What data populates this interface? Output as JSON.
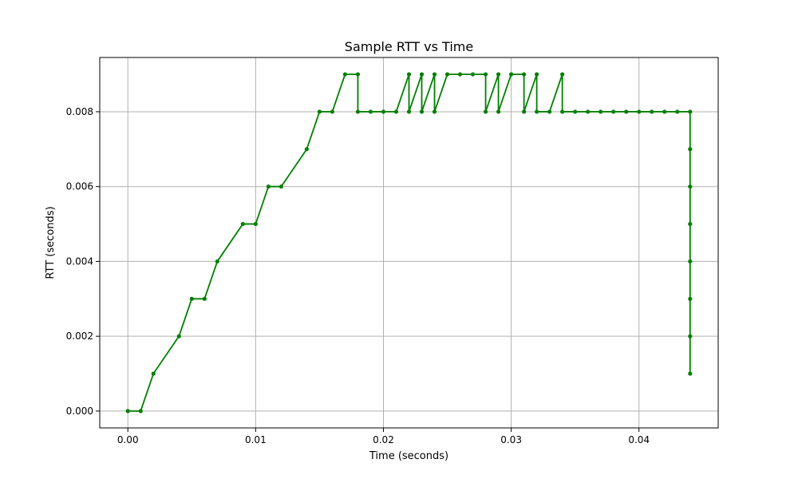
{
  "chart_data": {
    "type": "line",
    "title": "Sample RTT vs Time",
    "xlabel": "Time (seconds)",
    "ylabel": "RTT (seconds)",
    "xlim": [
      -0.0022,
      0.0462
    ],
    "ylim": [
      -0.00045,
      0.00945
    ],
    "x_ticks": [
      0.0,
      0.01,
      0.02,
      0.03,
      0.04
    ],
    "x_tick_labels": [
      "0.00",
      "0.01",
      "0.02",
      "0.03",
      "0.04"
    ],
    "y_ticks": [
      0.0,
      0.002,
      0.004,
      0.006,
      0.008
    ],
    "y_tick_labels": [
      "0.000",
      "0.002",
      "0.004",
      "0.006",
      "0.008"
    ],
    "grid": true,
    "legend": "none",
    "colors": {
      "series": "#008000",
      "grid": "#b0b0b0",
      "frame": "#000000"
    },
    "series": [
      {
        "x": [
          0.0,
          0.001,
          0.002,
          0.004,
          0.005,
          0.006,
          0.007,
          0.009,
          0.01,
          0.011,
          0.012,
          0.014,
          0.015,
          0.016,
          0.017,
          0.018,
          0.018,
          0.019,
          0.02,
          0.021,
          0.022,
          0.022,
          0.023,
          0.023,
          0.024,
          0.024,
          0.025,
          0.026,
          0.027,
          0.028,
          0.028,
          0.029,
          0.029,
          0.03,
          0.031,
          0.031,
          0.032,
          0.032,
          0.033,
          0.034,
          0.034,
          0.035,
          0.036,
          0.037,
          0.038,
          0.039,
          0.04,
          0.041,
          0.042,
          0.043,
          0.044,
          0.044,
          0.044,
          0.044,
          0.044,
          0.044,
          0.044,
          0.044
        ],
        "y": [
          0.0,
          0.0,
          0.001,
          0.002,
          0.003,
          0.003,
          0.004,
          0.005,
          0.005,
          0.006,
          0.006,
          0.007,
          0.008,
          0.008,
          0.009,
          0.009,
          0.008,
          0.008,
          0.008,
          0.008,
          0.009,
          0.008,
          0.009,
          0.008,
          0.009,
          0.008,
          0.009,
          0.009,
          0.009,
          0.009,
          0.008,
          0.009,
          0.008,
          0.009,
          0.009,
          0.008,
          0.009,
          0.008,
          0.008,
          0.009,
          0.008,
          0.008,
          0.008,
          0.008,
          0.008,
          0.008,
          0.008,
          0.008,
          0.008,
          0.008,
          0.008,
          0.007,
          0.006,
          0.005,
          0.004,
          0.003,
          0.002,
          0.001
        ]
      }
    ]
  }
}
